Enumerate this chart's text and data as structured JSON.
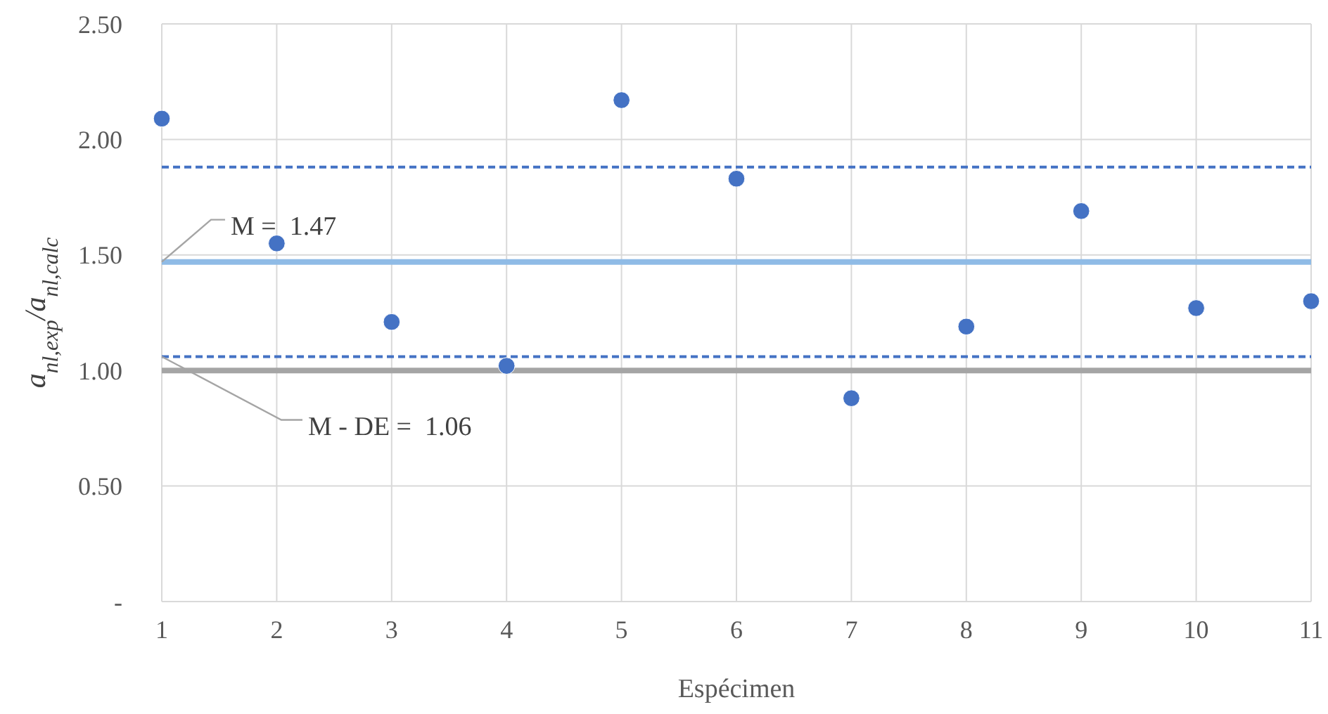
{
  "chart_data": {
    "type": "scatter",
    "xlabel": "Espécimen",
    "ylabel": "a$_{nl,exp}$/a$_{nl,calc}$",
    "x": [
      1,
      2,
      3,
      4,
      5,
      6,
      7,
      8,
      9,
      10,
      11
    ],
    "series": [
      {
        "color": "#4472c4",
        "values": [
          2.09,
          1.55,
          1.21,
          1.02,
          2.17,
          1.83,
          0.88,
          1.19,
          1.69,
          1.27,
          1.3
        ]
      }
    ],
    "xlim": [
      1,
      11
    ],
    "xticks": [
      1,
      2,
      3,
      4,
      5,
      6,
      7,
      8,
      9,
      10,
      11
    ],
    "ylim": [
      0,
      2.5
    ],
    "yticks": [
      {
        "value": 0,
        "label": "-"
      },
      {
        "value": 0.5,
        "label": "0.50"
      },
      {
        "value": 1,
        "label": "1.00"
      },
      {
        "value": 1.5,
        "label": "1.50"
      },
      {
        "value": 2,
        "label": "2.00"
      },
      {
        "value": 2.5,
        "label": "2.50"
      }
    ],
    "grid": true,
    "marker": "circle",
    "ref_lines": [
      {
        "axis": "y",
        "value": 1.0,
        "color": "#a5a5a5",
        "line_style": "solid"
      },
      {
        "axis": "y",
        "value": 1.47,
        "label": "M =  1.47",
        "color": "#8fbbe6",
        "line_style": "solid"
      },
      {
        "axis": "y",
        "value": 1.88,
        "color": "#4472c4",
        "line_style": "dashed"
      },
      {
        "axis": "y",
        "value": 1.06,
        "label": "M - DE =  1.06",
        "color": "#4472c4",
        "line_style": "dashed"
      }
    ]
  }
}
